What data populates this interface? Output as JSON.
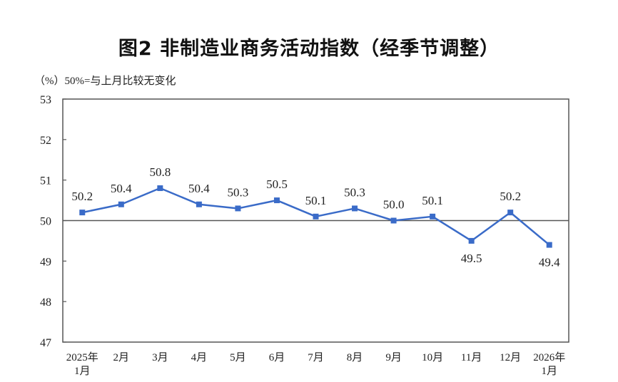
{
  "chart_data": {
    "type": "line",
    "title": "图2  非制造业商务活动指数（经季节调整）",
    "unit_note": "（%）50%=与上月比较无变化",
    "categories": [
      [
        "2025年",
        "1月"
      ],
      [
        "2月"
      ],
      [
        "3月"
      ],
      [
        "4月"
      ],
      [
        "5月"
      ],
      [
        "6月"
      ],
      [
        "7月"
      ],
      [
        "8月"
      ],
      [
        "9月"
      ],
      [
        "10月"
      ],
      [
        "11月"
      ],
      [
        "12月"
      ],
      [
        "2026年",
        "1月"
      ]
    ],
    "values": [
      50.2,
      50.4,
      50.8,
      50.4,
      50.3,
      50.5,
      50.1,
      50.3,
      50.0,
      50.1,
      49.5,
      50.2,
      49.4
    ],
    "data_labels": [
      "50.2",
      "50.4",
      "50.8",
      "50.4",
      "50.3",
      "50.5",
      "50.1",
      "50.3",
      "50.0",
      "50.1",
      "49.5",
      "50.2",
      "49.4"
    ],
    "label_below": [
      false,
      false,
      false,
      false,
      false,
      false,
      false,
      false,
      false,
      false,
      true,
      false,
      true
    ],
    "ylim": [
      47,
      53
    ],
    "yticks": [
      47,
      48,
      49,
      50,
      51,
      52,
      53
    ],
    "reference_line": 50,
    "grid": false,
    "legend": "none",
    "series_color": "#3a6bc8"
  }
}
